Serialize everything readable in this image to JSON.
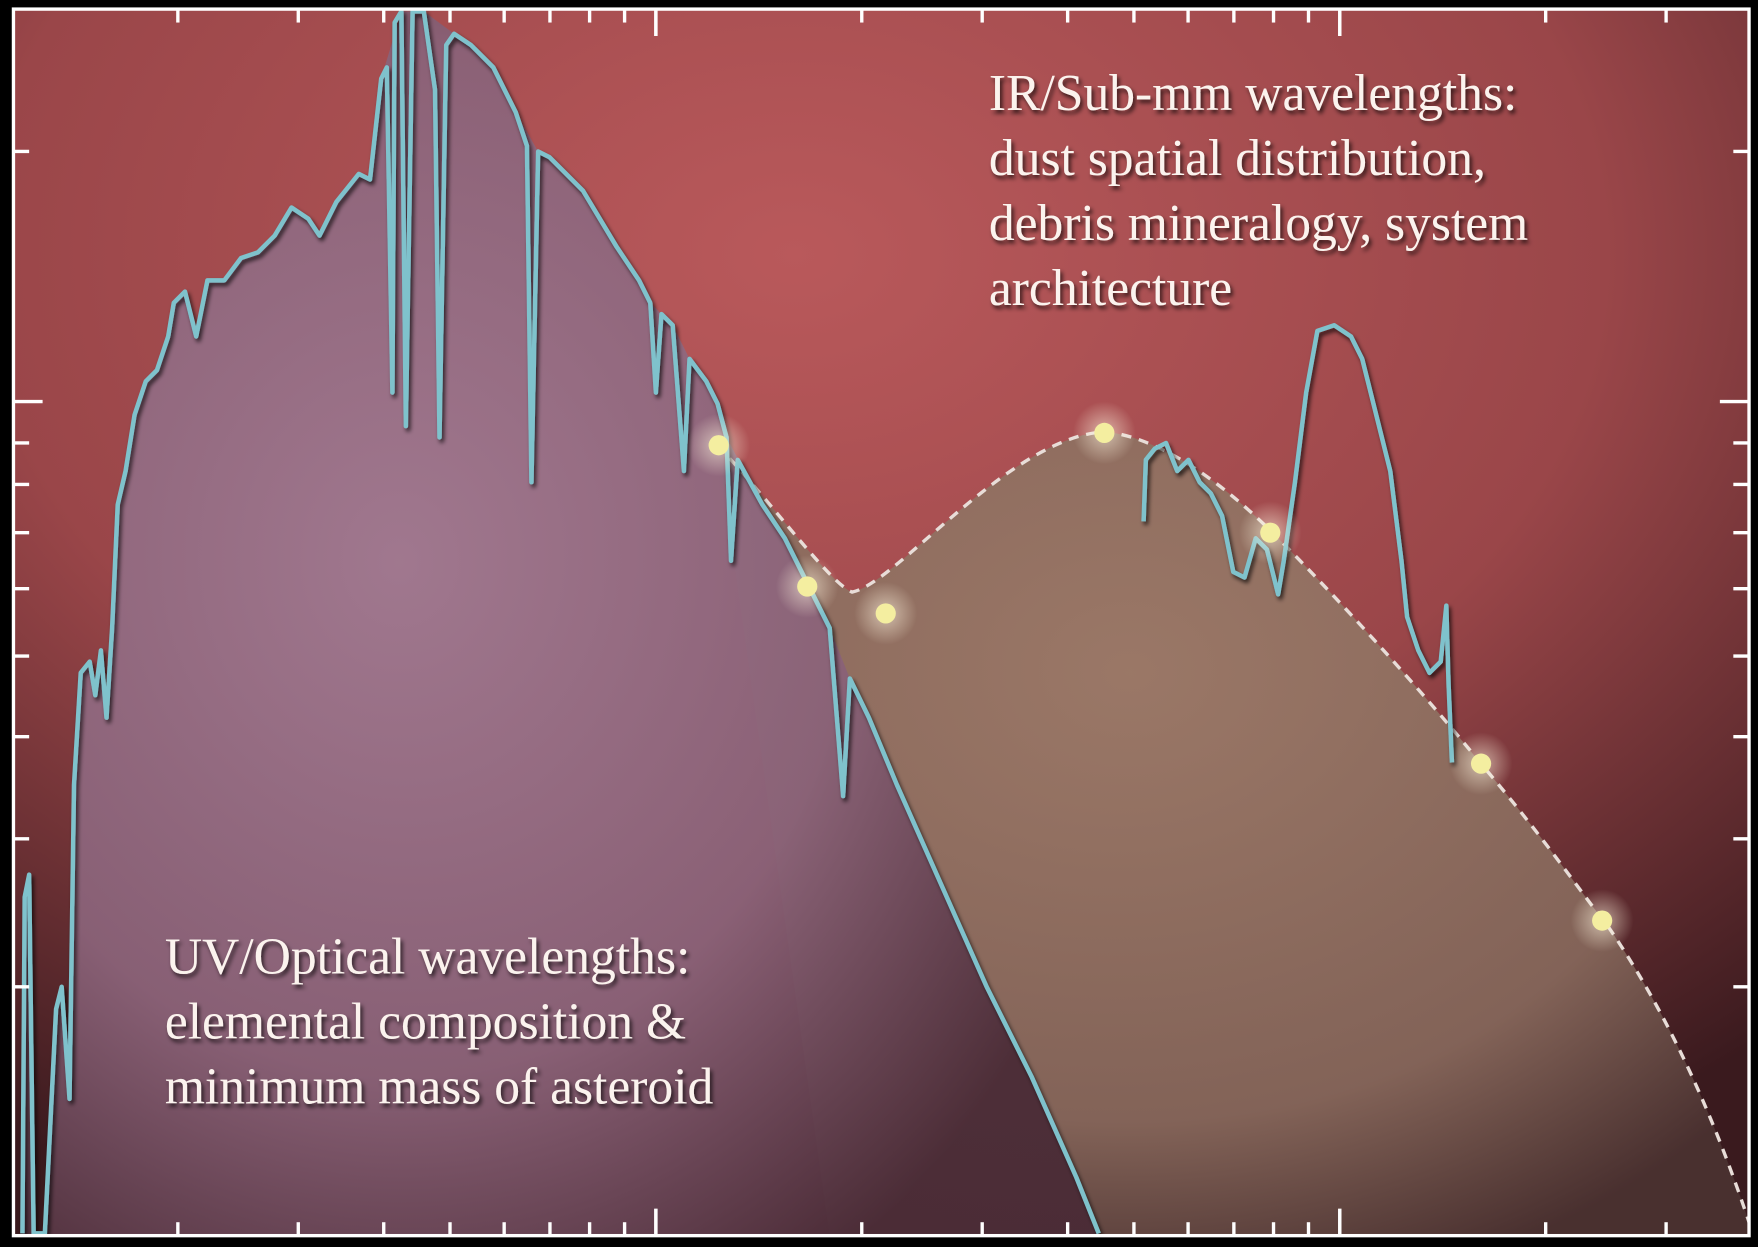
{
  "annotations": {
    "ir": {
      "lines": [
        "IR/Sub-mm wavelengths:",
        "dust spatial distribution,",
        "debris mineralogy, system",
        "architecture"
      ]
    },
    "uv": {
      "lines": [
        "UV/Optical wavelengths:",
        "elemental composition &",
        "minimum mass of asteroid"
      ]
    }
  }
}
